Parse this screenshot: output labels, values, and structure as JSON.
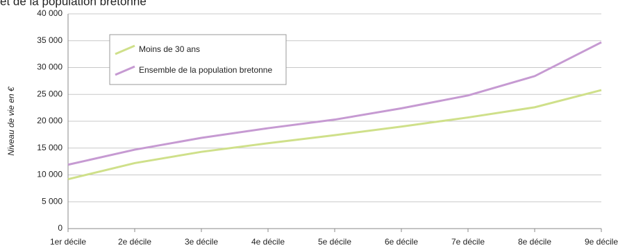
{
  "chart_data": {
    "type": "line",
    "title": "et de la population bretonne",
    "y_label": "Niveau de vie en €",
    "categories": [
      "1er décile",
      "2e décile",
      "3e décile",
      "4e décile",
      "5e décile",
      "6e décile",
      "7e décile",
      "8e décile",
      "9e décile"
    ],
    "series": [
      {
        "name": "Moins de 30 ans",
        "color": "#cfe08a",
        "values": [
          9200,
          12200,
          14300,
          15900,
          17400,
          19000,
          20700,
          22600,
          25800
        ]
      },
      {
        "name": "Ensemble de la population bretonne",
        "color": "#c69ad2",
        "values": [
          11900,
          14700,
          16900,
          18700,
          20300,
          22400,
          24800,
          28400,
          34700
        ]
      }
    ],
    "ylim": [
      0,
      40000
    ],
    "yticks": [
      0,
      {
        "value": 5000,
        "label": "5 000"
      },
      {
        "value": 10000,
        "label": "10 000"
      },
      {
        "value": 15000,
        "label": "15 000"
      },
      {
        "value": 20000,
        "label": "20 000"
      },
      {
        "value": 25000,
        "label": "25 000"
      },
      {
        "value": 30000,
        "label": "30 000"
      },
      {
        "value": 35000,
        "label": "35 000"
      },
      {
        "value": 40000,
        "label": "40 000"
      }
    ],
    "grid": true,
    "legend": "upper left"
  }
}
